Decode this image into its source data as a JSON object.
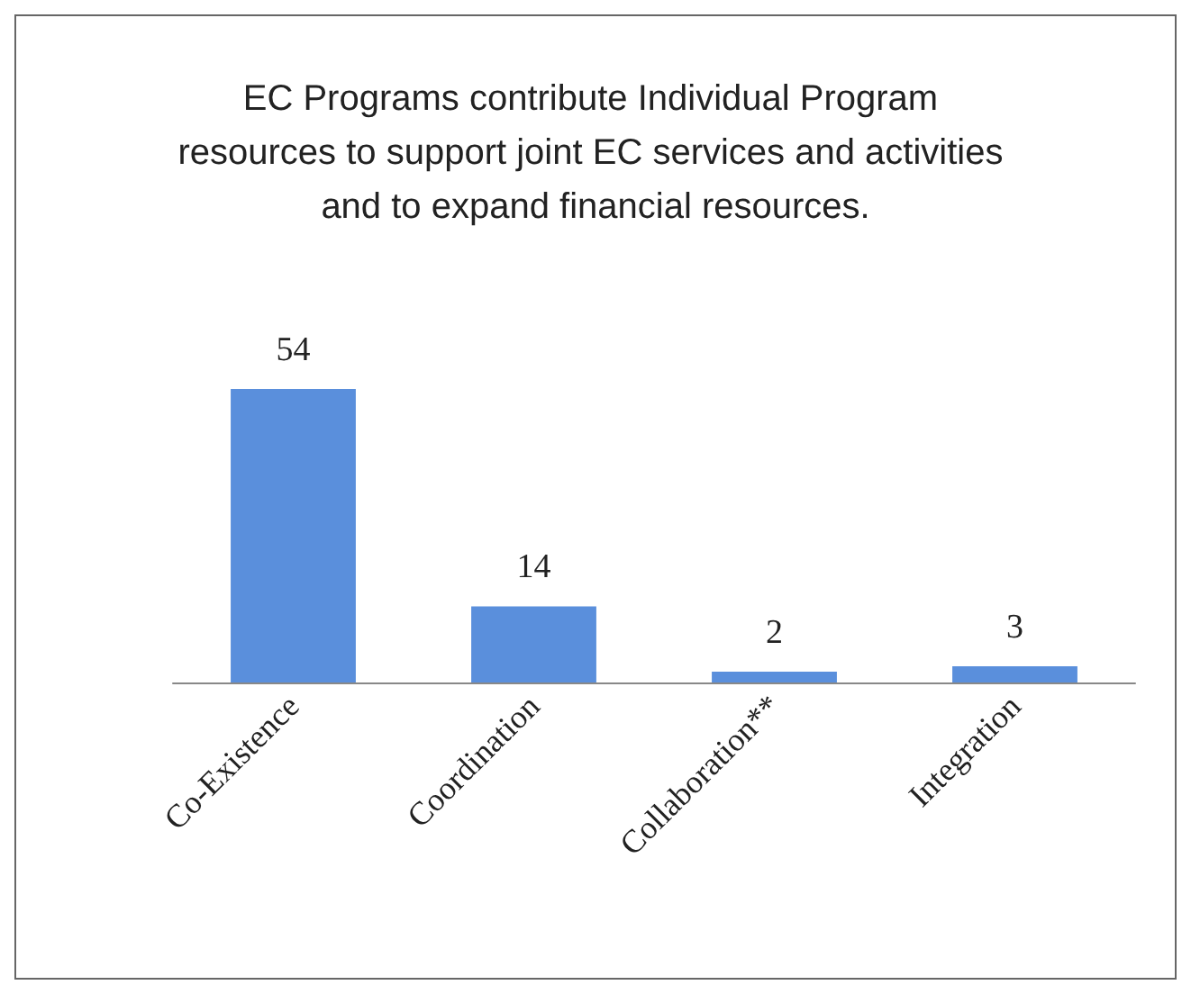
{
  "chart_data": {
    "type": "bar",
    "title": "EC Programs contribute Individual Program resources to support joint EC services and activities and to expand financial resources.",
    "categories": [
      "Co-Existence",
      "Coordination",
      "Collaboration**",
      "Integration"
    ],
    "values": [
      54,
      14,
      2,
      3
    ],
    "color": "#5a8fdc",
    "data_labels": true
  }
}
